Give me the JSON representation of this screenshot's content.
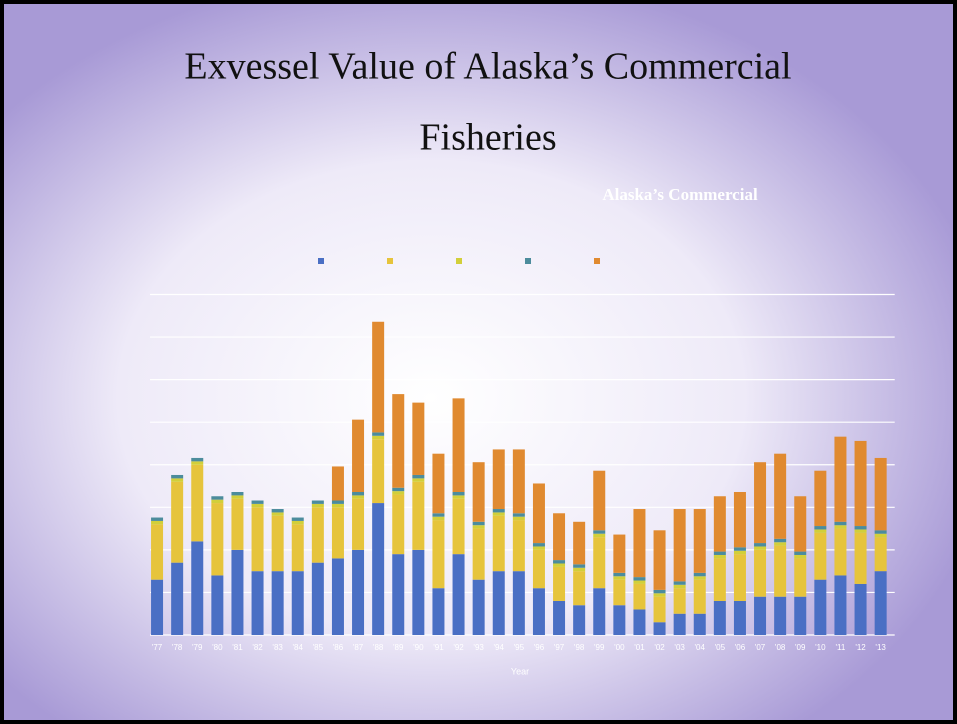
{
  "title_lines": [
    "Exvessel Value of Alaska’s Commercial",
    "Fisheries"
  ],
  "chart_data": {
    "type": "stacked_bar",
    "title": "Alaska’s Commercial",
    "x_label": "Year",
    "categories": [
      "'77",
      "'78",
      "'79",
      "'80",
      "'81",
      "'82",
      "'83",
      "'84",
      "'85",
      "'86",
      "'87",
      "'88",
      "'89",
      "'90",
      "'91",
      "'92",
      "'93",
      "'94",
      "'95",
      "'96",
      "'97",
      "'98",
      "'99",
      "'00",
      "'01",
      "'02",
      "'03",
      "'04",
      "'05",
      "'06",
      "'07",
      "'08",
      "'09",
      "'10",
      "'11",
      "'12",
      "'13"
    ],
    "series": [
      {
        "color": "#4a6fc4",
        "values": [
          1.3,
          1.7,
          2.2,
          1.4,
          2.0,
          1.5,
          1.5,
          1.5,
          1.7,
          1.8,
          2.0,
          3.1,
          1.9,
          2.0,
          1.1,
          1.9,
          1.3,
          1.5,
          1.5,
          1.1,
          0.8,
          0.7,
          1.1,
          0.7,
          0.6,
          0.3,
          0.5,
          0.5,
          0.8,
          0.8,
          0.9,
          0.9,
          0.9,
          1.3,
          1.4,
          1.2,
          1.5
        ]
      },
      {
        "color": "#e6c43c",
        "values": [
          1.3,
          1.9,
          1.8,
          1.7,
          1.2,
          1.5,
          1.3,
          1.1,
          1.3,
          1.2,
          1.2,
          1.5,
          1.4,
          1.6,
          1.6,
          1.3,
          1.2,
          1.3,
          1.2,
          0.9,
          0.8,
          0.8,
          1.2,
          0.6,
          0.6,
          0.6,
          0.6,
          0.8,
          1.0,
          1.1,
          1.1,
          1.2,
          0.9,
          1.1,
          1.1,
          1.2,
          0.8
        ]
      },
      {
        "color": "#d2cf3a",
        "values": [
          0.08,
          0.08,
          0.08,
          0.08,
          0.08,
          0.08,
          0.08,
          0.08,
          0.08,
          0.08,
          0.08,
          0.08,
          0.08,
          0.08,
          0.08,
          0.08,
          0.08,
          0.08,
          0.08,
          0.08,
          0.08,
          0.08,
          0.08,
          0.08,
          0.08,
          0.08,
          0.08,
          0.08,
          0.08,
          0.08,
          0.08,
          0.08,
          0.08,
          0.08,
          0.08,
          0.08,
          0.08
        ]
      },
      {
        "color": "#4c8c9c",
        "values": [
          0.08,
          0.08,
          0.08,
          0.08,
          0.08,
          0.08,
          0.08,
          0.08,
          0.08,
          0.08,
          0.08,
          0.08,
          0.08,
          0.08,
          0.08,
          0.08,
          0.08,
          0.08,
          0.08,
          0.08,
          0.08,
          0.08,
          0.08,
          0.08,
          0.08,
          0.08,
          0.08,
          0.08,
          0.08,
          0.08,
          0.08,
          0.08,
          0.08,
          0.08,
          0.08,
          0.08,
          0.08
        ]
      },
      {
        "color": "#e08a30",
        "values": [
          0,
          0,
          0,
          0,
          0,
          0,
          0,
          0,
          0,
          0.8,
          1.7,
          2.6,
          2.2,
          1.7,
          1.4,
          2.2,
          1.4,
          1.4,
          1.5,
          1.4,
          1.1,
          1.0,
          1.4,
          0.9,
          1.6,
          1.4,
          1.7,
          1.5,
          1.3,
          1.3,
          1.9,
          2.0,
          1.3,
          1.3,
          2.0,
          2.0,
          1.7
        ]
      }
    ],
    "ylim": [
      0,
      8.2
    ],
    "yticks": [
      0,
      1,
      2,
      3,
      4,
      5,
      6,
      7,
      8
    ],
    "grid": true
  }
}
